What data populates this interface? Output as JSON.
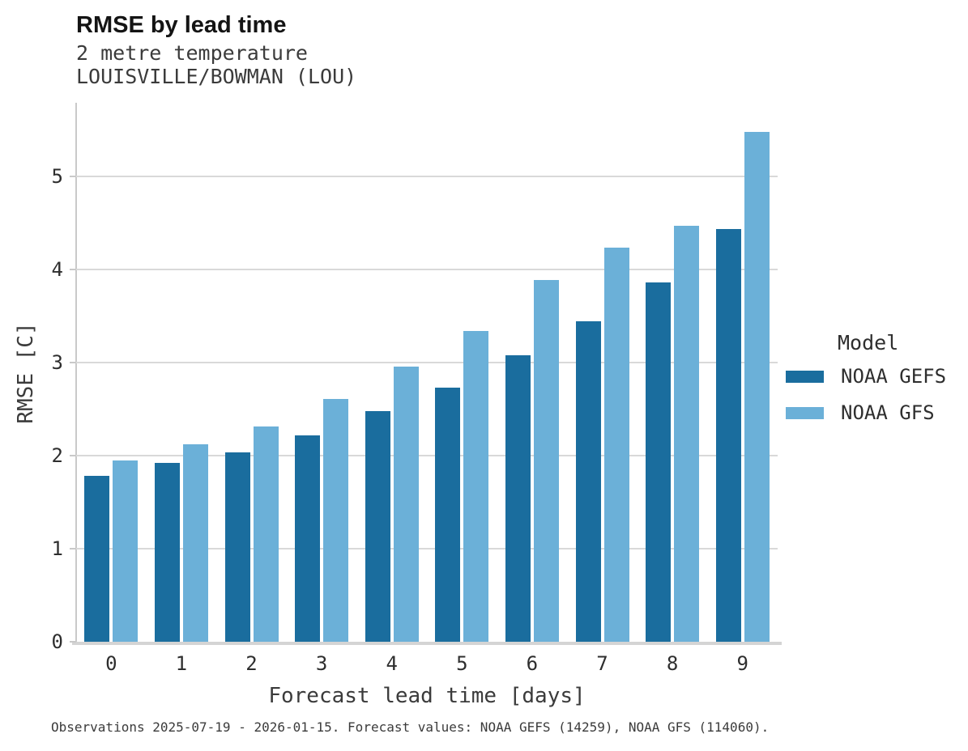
{
  "header": {
    "title": "RMSE by lead time",
    "subtitle_line1": "2 metre temperature",
    "subtitle_line2": "LOUISVILLE/BOWMAN (LOU)"
  },
  "chart_data": {
    "type": "bar",
    "title": "RMSE by lead time",
    "subtitle": [
      "2 metre temperature",
      "LOUISVILLE/BOWMAN (LOU)"
    ],
    "xlabel": "Forecast lead time [days]",
    "ylabel": "RMSE [C]",
    "categories": [
      "0",
      "1",
      "2",
      "3",
      "4",
      "5",
      "6",
      "7",
      "8",
      "9"
    ],
    "series": [
      {
        "name": "NOAA GEFS",
        "color": "#1a6d9e",
        "values": [
          1.78,
          1.92,
          2.03,
          2.22,
          2.48,
          2.73,
          3.08,
          3.44,
          3.86,
          4.43
        ]
      },
      {
        "name": "NOAA GFS",
        "color": "#6bb0d8",
        "values": [
          1.95,
          2.12,
          2.31,
          2.61,
          2.96,
          3.34,
          3.89,
          4.23,
          4.47,
          5.48
        ]
      }
    ],
    "ylim": [
      0,
      5.79
    ],
    "yticks": [
      0,
      1,
      2,
      3,
      4,
      5
    ],
    "grid": true,
    "legend": {
      "title": "Model",
      "position": "right"
    }
  },
  "footer": {
    "caption": "Observations 2025-07-19 - 2026-01-15. Forecast values: NOAA GEFS (14259), NOAA GFS (114060)."
  },
  "colors": {
    "gefs_bar": "#1a6d9e",
    "gfs_bar": "#6bb0d8",
    "gridline": "#d9d9d9",
    "spine": "#c9c9c9",
    "bottom_spine": "#d4d4d4",
    "axis_text": "#2e2e2e",
    "subtitle_text": "#3b3b3b",
    "title_text": "#141414"
  }
}
